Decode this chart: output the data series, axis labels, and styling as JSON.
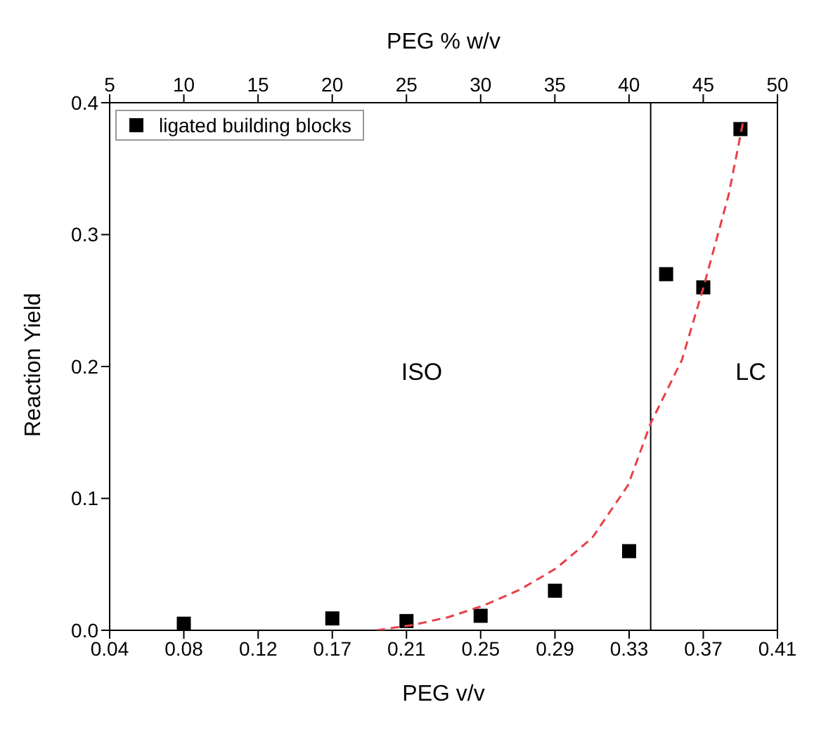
{
  "chart_data": {
    "type": "scatter",
    "xlabel": "PEG v/v",
    "x2label": "PEG % w/v",
    "ylabel": "Reaction Yield",
    "xlim": [
      0.0413,
      0.4132
    ],
    "xticks": [
      {
        "value": 0.0413,
        "label": "0.04"
      },
      {
        "value": 0.0826,
        "label": "0.08"
      },
      {
        "value": 0.124,
        "label": "0.12"
      },
      {
        "value": 0.1653,
        "label": "0.17"
      },
      {
        "value": 0.2066,
        "label": "0.21"
      },
      {
        "value": 0.2479,
        "label": "0.25"
      },
      {
        "value": 0.2893,
        "label": "0.29"
      },
      {
        "value": 0.3306,
        "label": "0.33"
      },
      {
        "value": 0.3719,
        "label": "0.37"
      },
      {
        "value": 0.4132,
        "label": "0.41"
      }
    ],
    "x2lim": [
      5,
      50
    ],
    "x2ticks": [
      5,
      10,
      15,
      20,
      25,
      30,
      35,
      40,
      45,
      50
    ],
    "ylim": [
      0,
      0.4
    ],
    "yticks": [
      {
        "value": 0,
        "label": "0.0"
      },
      {
        "value": 0.1,
        "label": "0.1"
      },
      {
        "value": 0.2,
        "label": "0.2"
      },
      {
        "value": 0.3,
        "label": "0.3"
      },
      {
        "value": 0.4,
        "label": "0.4"
      }
    ],
    "legend": "top left",
    "marker": "square",
    "series": [
      {
        "name": "ligated building blocks",
        "color": "#000000",
        "x": [
          0.0826,
          0.1653,
          0.2066,
          0.2479,
          0.2893,
          0.3306,
          0.3512,
          0.3719,
          0.3926
        ],
        "values": [
          0.005,
          0.009,
          0.007,
          0.011,
          0.03,
          0.06,
          0.27,
          0.26,
          0.38
        ]
      },
      {
        "color": "#e8404a",
        "type": "line",
        "line_style": "dashed",
        "marker": "none",
        "x": [
          0.19,
          0.21,
          0.23,
          0.25,
          0.27,
          0.29,
          0.31,
          0.33,
          0.3426,
          0.36,
          0.372,
          0.386,
          0.394
        ],
        "values": [
          0,
          0.004,
          0.01,
          0.019,
          0.031,
          0.047,
          0.07,
          0.11,
          0.157,
          0.205,
          0.26,
          0.33,
          0.385
        ]
      }
    ],
    "ref_lines": [
      {
        "axis": "x",
        "value": 0.3426,
        "color": "#000000",
        "line_style": "solid"
      }
    ],
    "annotations": [
      "ISO",
      "LC"
    ]
  }
}
